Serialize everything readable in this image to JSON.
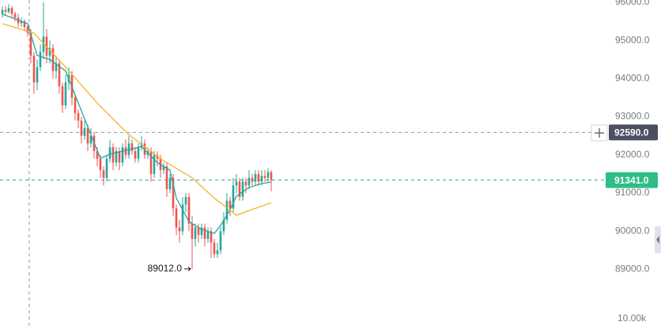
{
  "chart_data": {
    "type": "candlestick",
    "up_color": "#26a69a",
    "down_color": "#ef5350",
    "ylim": [
      88500,
      96060
    ],
    "yticks": [
      {
        "value": 89000,
        "label": "89000.0"
      },
      {
        "value": 90000,
        "label": "90000.0"
      },
      {
        "value": 91000,
        "label": "91000.0"
      },
      {
        "value": 92000,
        "label": "92000.0"
      },
      {
        "value": 93000,
        "label": "93000.0"
      },
      {
        "value": 94000,
        "label": "94000.0"
      },
      {
        "value": 95000,
        "label": "95000.0"
      },
      {
        "value": 96000,
        "label": "96000.0"
      }
    ],
    "ohlc": [
      [
        95700,
        95900,
        95600,
        95800
      ],
      [
        95800,
        95900,
        95650,
        95750
      ],
      [
        95750,
        95950,
        95700,
        95850
      ],
      [
        95850,
        95900,
        95600,
        95700
      ],
      [
        95700,
        95750,
        95500,
        95600
      ],
      [
        95600,
        95700,
        95350,
        95450
      ],
      [
        95450,
        95600,
        95350,
        95500
      ],
      [
        95500,
        95550,
        95250,
        95350
      ],
      [
        95350,
        95400,
        95100,
        95200
      ],
      [
        95200,
        95300,
        94400,
        94600
      ],
      [
        94600,
        94700,
        93600,
        93900
      ],
      [
        93900,
        94500,
        93700,
        94300
      ],
      [
        94300,
        94900,
        94200,
        94700
      ],
      [
        94700,
        96000,
        94500,
        95100
      ],
      [
        95100,
        95300,
        94400,
        94600
      ],
      [
        94600,
        95000,
        94400,
        94800
      ],
      [
        94800,
        94900,
        94000,
        94200
      ],
      [
        94200,
        94600,
        94000,
        94400
      ],
      [
        94400,
        94500,
        93600,
        93800
      ],
      [
        93800,
        93900,
        93100,
        93300
      ],
      [
        93300,
        94100,
        93200,
        93900
      ],
      [
        93900,
        94300,
        93700,
        94100
      ],
      [
        94100,
        94200,
        93300,
        93500
      ],
      [
        93500,
        93600,
        92900,
        93100
      ],
      [
        93100,
        93200,
        92700,
        92900
      ],
      [
        92900,
        93000,
        92300,
        92500
      ],
      [
        92500,
        92900,
        92400,
        92700
      ],
      [
        92700,
        92800,
        92100,
        92300
      ],
      [
        92300,
        92700,
        92200,
        92500
      ],
      [
        92500,
        92600,
        91900,
        92100
      ],
      [
        92100,
        92200,
        91700,
        91900
      ],
      [
        91900,
        92000,
        91400,
        91600
      ],
      [
        91600,
        91700,
        91200,
        91400
      ],
      [
        91400,
        92000,
        91300,
        91900
      ],
      [
        91900,
        92400,
        91800,
        92200
      ],
      [
        92200,
        92300,
        91600,
        91800
      ],
      [
        91800,
        92200,
        91700,
        92100
      ],
      [
        92100,
        92200,
        91600,
        91800
      ],
      [
        91800,
        92300,
        91700,
        92200
      ],
      [
        92200,
        92400,
        91900,
        92000
      ],
      [
        92000,
        92500,
        91900,
        92300
      ],
      [
        92300,
        92400,
        92000,
        92100
      ],
      [
        92100,
        92200,
        91800,
        91900
      ],
      [
        91900,
        92300,
        91800,
        92200
      ],
      [
        92200,
        92500,
        92100,
        92300
      ],
      [
        92300,
        92400,
        91900,
        92000
      ],
      [
        92000,
        92200,
        91900,
        92100
      ],
      [
        92100,
        92200,
        91300,
        91500
      ],
      [
        91500,
        92100,
        91400,
        92000
      ],
      [
        92000,
        92100,
        91700,
        91900
      ],
      [
        91900,
        92000,
        91400,
        91600
      ],
      [
        91600,
        91800,
        91500,
        91700
      ],
      [
        91700,
        91800,
        90900,
        91100
      ],
      [
        91100,
        91500,
        91000,
        91400
      ],
      [
        91400,
        91500,
        90400,
        90600
      ],
      [
        90600,
        90700,
        89900,
        90100
      ],
      [
        90100,
        90300,
        89700,
        90000
      ],
      [
        90000,
        90900,
        89900,
        90700
      ],
      [
        90700,
        91000,
        90500,
        90900
      ],
      [
        90900,
        91000,
        90000,
        90200
      ],
      [
        90200,
        90400,
        89012,
        89800
      ],
      [
        89800,
        90200,
        89600,
        90100
      ],
      [
        90100,
        90200,
        89700,
        89900
      ],
      [
        89900,
        90200,
        89800,
        90100
      ],
      [
        90100,
        90200,
        89600,
        89800
      ],
      [
        89800,
        90100,
        89700,
        90000
      ],
      [
        90000,
        90100,
        89300,
        89700
      ],
      [
        89700,
        89800,
        89300,
        89400
      ],
      [
        89400,
        89700,
        89300,
        89500
      ],
      [
        89500,
        90100,
        89400,
        90000
      ],
      [
        90000,
        90500,
        89900,
        90300
      ],
      [
        90300,
        91000,
        90200,
        90800
      ],
      [
        90800,
        90900,
        90400,
        90600
      ],
      [
        90600,
        91400,
        90500,
        91200
      ],
      [
        91200,
        91500,
        91000,
        91300
      ],
      [
        91300,
        91400,
        90800,
        90900
      ],
      [
        90900,
        91400,
        90800,
        91300
      ],
      [
        91300,
        91400,
        91000,
        91200
      ],
      [
        91200,
        91600,
        91100,
        91400
      ],
      [
        91400,
        91500,
        91200,
        91300
      ],
      [
        91300,
        91600,
        91200,
        91500
      ],
      [
        91500,
        91600,
        91200,
        91300
      ],
      [
        91300,
        91600,
        91200,
        91450
      ],
      [
        91450,
        91600,
        91300,
        91400
      ],
      [
        91400,
        91650,
        91300,
        91550
      ],
      [
        91550,
        91600,
        91050,
        91341
      ]
    ],
    "ma": [
      {
        "color": "#26a69a",
        "index": [
          0,
          8,
          11,
          15,
          20,
          23,
          27,
          31,
          34,
          39,
          44,
          49,
          53,
          55,
          59,
          63,
          67,
          69,
          72,
          74,
          78,
          82,
          85
        ],
        "values": [
          95690,
          95440,
          94610,
          94500,
          94200,
          93570,
          92740,
          91910,
          92020,
          92120,
          92220,
          91800,
          91600,
          90870,
          90250,
          90050,
          89940,
          90150,
          90560,
          90920,
          91150,
          91250,
          91290
        ]
      },
      {
        "color": "#f5b324",
        "index": [
          0,
          10,
          20,
          30,
          40,
          50,
          60,
          67,
          74,
          80,
          85
        ],
        "values": [
          95440,
          95190,
          94300,
          93360,
          92530,
          91900,
          91400,
          90870,
          90420,
          90600,
          90750
        ]
      }
    ],
    "crosshair": {
      "index": 8.5,
      "price": {
        "value": 92590,
        "label": "92590.0"
      }
    },
    "last_price": {
      "value": 91341,
      "label": "91341.0"
    },
    "low_marker": {
      "index": 60,
      "price": {
        "value": 89012,
        "label": "89012.0"
      }
    },
    "volume_ylim": [
      0,
      35000
    ],
    "volume_yticks": [
      {
        "value": 10000,
        "label": "10.00k"
      }
    ]
  }
}
